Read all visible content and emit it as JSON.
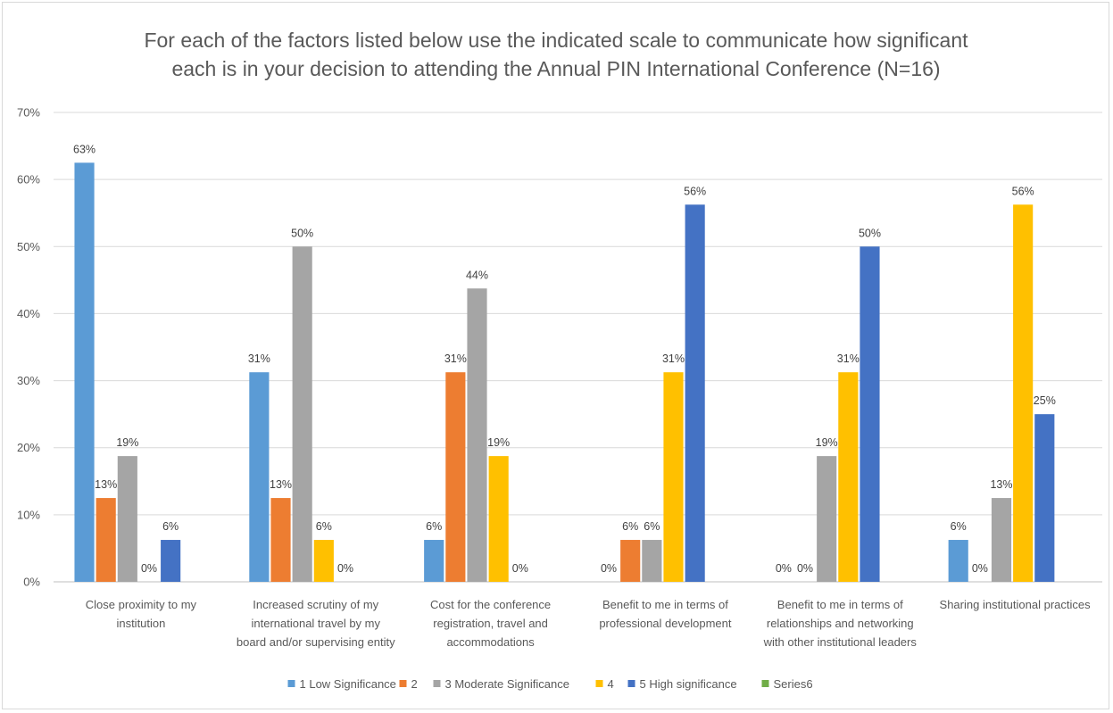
{
  "chart_data": {
    "type": "bar",
    "title_lines": [
      "For each of the factors listed below use the indicated scale to communicate how significant",
      "each is in your decision to attending the Annual PIN International Conference (N=16)"
    ],
    "categories": [
      [
        "Close proximity to my",
        "institution"
      ],
      [
        "Increased scrutiny of my",
        "international travel by my",
        "board and/or supervising entity"
      ],
      [
        "Cost for the conference",
        "registration, travel and",
        "accommodations"
      ],
      [
        "Benefit to me in terms of",
        "professional development"
      ],
      [
        "Benefit to me in terms of",
        "relationships and networking",
        "with other institutional leaders"
      ],
      [
        "Sharing institutional practices"
      ]
    ],
    "series": [
      {
        "name": "1 Low Significance",
        "color": "#5B9BD5",
        "values": [
          62.5,
          31.25,
          6.25,
          0,
          0,
          6.25
        ],
        "labels": [
          "63%",
          "31%",
          "6%",
          "0%",
          "0%",
          "6%"
        ]
      },
      {
        "name": "2",
        "color": "#ED7D31",
        "values": [
          12.5,
          12.5,
          31.25,
          6.25,
          0,
          0
        ],
        "labels": [
          "13%",
          "13%",
          "31%",
          "6%",
          "0%",
          "0%"
        ]
      },
      {
        "name": "3 Moderate Significance",
        "color": "#A5A5A5",
        "values": [
          18.75,
          50,
          43.75,
          6.25,
          18.75,
          12.5
        ],
        "labels": [
          "19%",
          "50%",
          "44%",
          "6%",
          "19%",
          "13%"
        ]
      },
      {
        "name": "4",
        "color": "#FFC000",
        "values": [
          0,
          6.25,
          18.75,
          31.25,
          31.25,
          56.25
        ],
        "labels": [
          "0%",
          "6%",
          "19%",
          "31%",
          "31%",
          "56%"
        ]
      },
      {
        "name": "5 High significance",
        "color": "#4472C4",
        "values": [
          6.25,
          0,
          0,
          56.25,
          50,
          25
        ],
        "labels": [
          "6%",
          "0%",
          "0%",
          "56%",
          "50%",
          "25%"
        ]
      },
      {
        "name": "Series6",
        "color": "#70AD47",
        "values": [
          0,
          0,
          0,
          0,
          0,
          0
        ],
        "labels": [
          "",
          "",
          "",
          "",
          "",
          ""
        ]
      }
    ],
    "yticks": [
      "0%",
      "10%",
      "20%",
      "30%",
      "40%",
      "50%",
      "60%",
      "70%"
    ],
    "ylim": [
      0,
      70
    ],
    "grid": true,
    "legend_position": "bottom"
  }
}
